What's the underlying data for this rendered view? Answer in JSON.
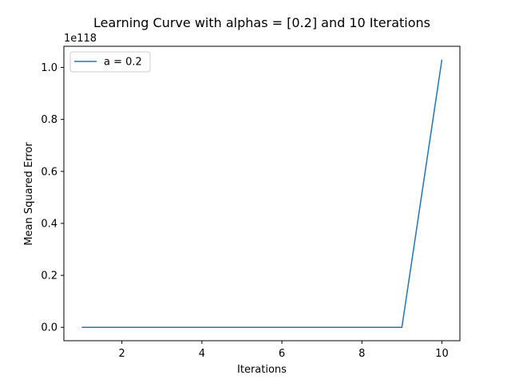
{
  "chart_data": {
    "type": "line",
    "title": "Learning Curve with alphas = [0.2] and 10 Iterations",
    "xlabel": "Iterations",
    "ylabel": "Mean Squared Error",
    "y_offset_label": "1e118",
    "xlim": [
      0.55,
      10.45
    ],
    "ylim": [
      -0.0515,
      1.0815
    ],
    "x_ticks": [
      2,
      4,
      6,
      8,
      10
    ],
    "y_ticks": [
      0.0,
      0.2,
      0.4,
      0.6,
      0.8,
      1.0
    ],
    "x_tick_labels": [
      "2",
      "4",
      "6",
      "8",
      "10"
    ],
    "y_tick_labels": [
      "0.0",
      "0.2",
      "0.4",
      "0.6",
      "0.8",
      "1.0"
    ],
    "grid": false,
    "legend_position": "top-left",
    "series": [
      {
        "name": "a = 0.2",
        "color": "#1f77b4",
        "x": [
          1,
          2,
          3,
          4,
          5,
          6,
          7,
          8,
          9,
          10
        ],
        "y": [
          0,
          0,
          0,
          0,
          0,
          0,
          0,
          0,
          0,
          1.03
        ]
      }
    ]
  }
}
